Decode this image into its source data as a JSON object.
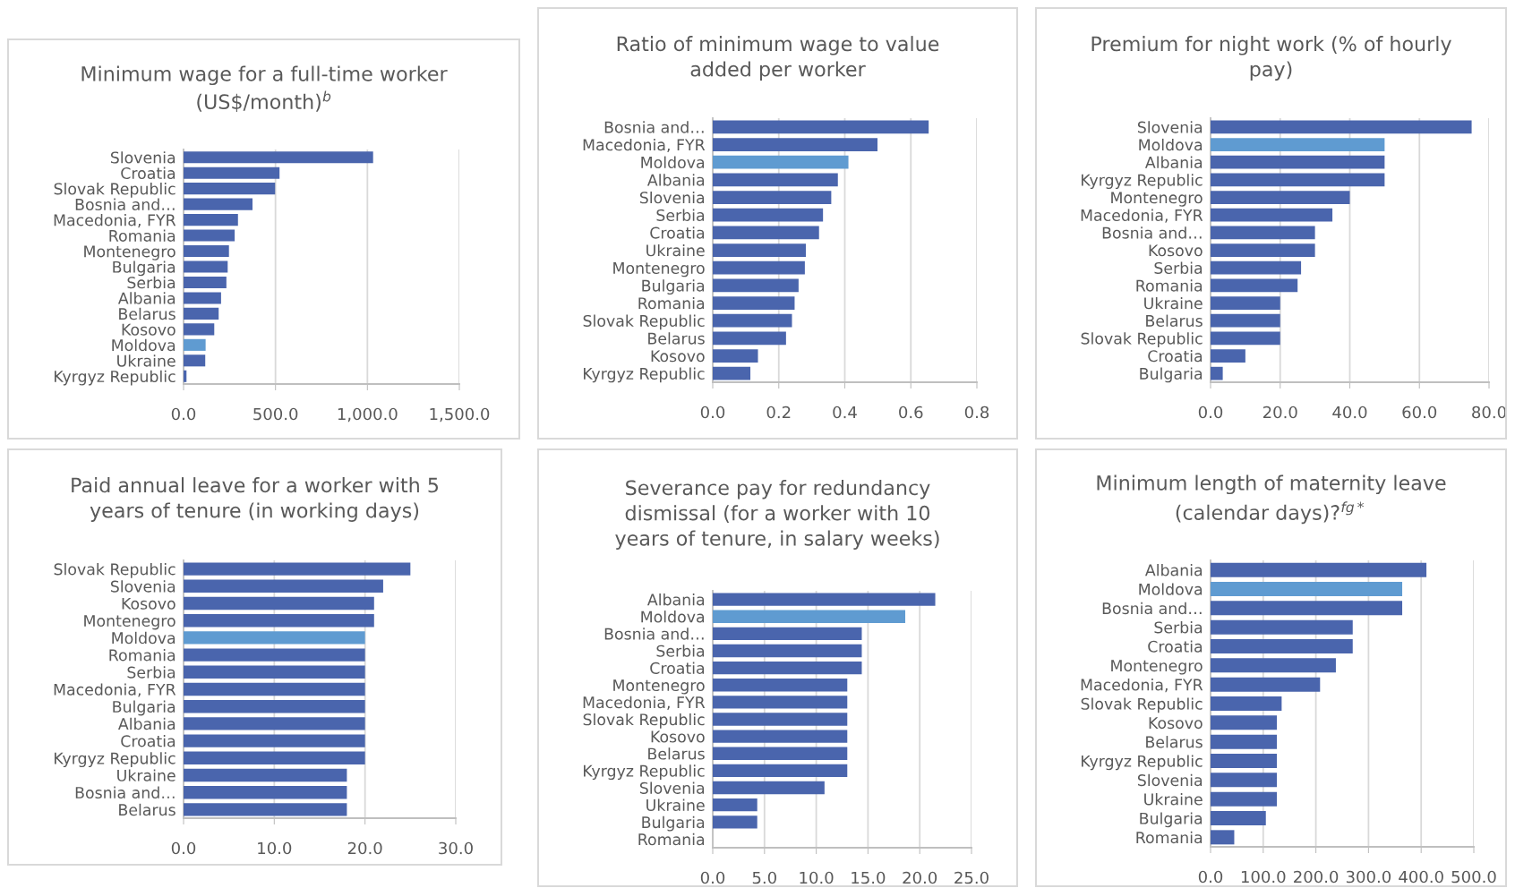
{
  "chart_data": [
    {
      "type": "bar",
      "orientation": "horizontal",
      "grid": "x",
      "title": "Minimum wage for a full-time worker (US$/month)$^{b}$",
      "categories": [
        "Slovenia",
        "Croatia",
        "Slovak Republic",
        "Bosnia and…",
        "Macedonia, FYR",
        "Romania",
        "Montenegro",
        "Bulgaria",
        "Serbia",
        "Albania",
        "Belarus",
        "Kosovo",
        "Moldova",
        "Ukraine",
        "Kyrgyz Republic"
      ],
      "values": [
        1031,
        522,
        498,
        375,
        296,
        278,
        247,
        240,
        233,
        204,
        191,
        167,
        120,
        118,
        16
      ],
      "colors": [
        "#4a65ad",
        "#4a65ad",
        "#4a65ad",
        "#4a65ad",
        "#4a65ad",
        "#4a65ad",
        "#4a65ad",
        "#4a65ad",
        "#4a65ad",
        "#4a65ad",
        "#4a65ad",
        "#4a65ad",
        "#5f9bd1",
        "#4a65ad",
        "#4a65ad"
      ],
      "xlim": [
        0,
        1500
      ],
      "xticks": [
        {
          "value": 0,
          "label": "0.0"
        },
        {
          "value": 500,
          "label": "500.0"
        },
        {
          "value": 1000,
          "label": "1,000.0"
        },
        {
          "value": 1500,
          "label": "1,500.0"
        }
      ]
    },
    {
      "type": "bar",
      "orientation": "horizontal",
      "grid": "x",
      "title": "Ratio of minimum wage to value added per worker",
      "categories": [
        "Bosnia and…",
        "Macedonia, FYR",
        "Moldova",
        "Albania",
        "Slovenia",
        "Serbia",
        "Croatia",
        "Ukraine",
        "Montenegro",
        "Bulgaria",
        "Romania",
        "Slovak Republic",
        "Belarus",
        "Kosovo",
        "Kyrgyz Republic"
      ],
      "values": [
        0.654,
        0.499,
        0.411,
        0.379,
        0.359,
        0.334,
        0.322,
        0.282,
        0.279,
        0.26,
        0.248,
        0.24,
        0.222,
        0.137,
        0.114
      ],
      "colors": [
        "#4a65ad",
        "#4a65ad",
        "#5f9bd1",
        "#4a65ad",
        "#4a65ad",
        "#4a65ad",
        "#4a65ad",
        "#4a65ad",
        "#4a65ad",
        "#4a65ad",
        "#4a65ad",
        "#4a65ad",
        "#4a65ad",
        "#4a65ad",
        "#4a65ad"
      ],
      "xlim": [
        0,
        0.8
      ],
      "xticks": [
        {
          "value": 0,
          "label": "0.0"
        },
        {
          "value": 0.2,
          "label": "0.2"
        },
        {
          "value": 0.4,
          "label": "0.4"
        },
        {
          "value": 0.6,
          "label": "0.6"
        },
        {
          "value": 0.8,
          "label": "0.8"
        }
      ]
    },
    {
      "type": "bar",
      "orientation": "horizontal",
      "grid": "x",
      "title": "Premium for night work (% of hourly pay)",
      "categories": [
        "Slovenia",
        "Moldova",
        "Albania",
        "Kyrgyz Republic",
        "Montenegro",
        "Macedonia, FYR",
        "Bosnia and…",
        "Kosovo",
        "Serbia",
        "Romania",
        "Ukraine",
        "Belarus",
        "Slovak Republic",
        "Croatia",
        "Bulgaria"
      ],
      "values": [
        75,
        50,
        50,
        50,
        40,
        35,
        30,
        30,
        26,
        25,
        20,
        20,
        20,
        10,
        3.5
      ],
      "colors": [
        "#4a65ad",
        "#5f9bd1",
        "#4a65ad",
        "#4a65ad",
        "#4a65ad",
        "#4a65ad",
        "#4a65ad",
        "#4a65ad",
        "#4a65ad",
        "#4a65ad",
        "#4a65ad",
        "#4a65ad",
        "#4a65ad",
        "#4a65ad",
        "#4a65ad"
      ],
      "xlim": [
        0,
        80
      ],
      "xticks": [
        {
          "value": 0,
          "label": "0.0"
        },
        {
          "value": 20,
          "label": "20.0"
        },
        {
          "value": 40,
          "label": "40.0"
        },
        {
          "value": 60,
          "label": "60.0"
        },
        {
          "value": 80,
          "label": "80.0"
        }
      ]
    },
    {
      "type": "bar",
      "orientation": "horizontal",
      "grid": "x",
      "title": "Paid annual leave for a worker with 5 years of tenure (in working days)",
      "categories": [
        "Slovak Republic",
        "Slovenia",
        "Kosovo",
        "Montenegro",
        "Moldova",
        "Romania",
        "Serbia",
        "Macedonia, FYR",
        "Bulgaria",
        "Albania",
        "Croatia",
        "Kyrgyz Republic",
        "Ukraine",
        "Bosnia and…",
        "Belarus"
      ],
      "values": [
        25,
        22,
        21,
        21,
        20,
        20,
        20,
        20,
        20,
        20,
        20,
        20,
        18,
        18,
        18
      ],
      "colors": [
        "#4a65ad",
        "#4a65ad",
        "#4a65ad",
        "#4a65ad",
        "#5f9bd1",
        "#4a65ad",
        "#4a65ad",
        "#4a65ad",
        "#4a65ad",
        "#4a65ad",
        "#4a65ad",
        "#4a65ad",
        "#4a65ad",
        "#4a65ad",
        "#4a65ad"
      ],
      "xlim": [
        0,
        30
      ],
      "xticks": [
        {
          "value": 0,
          "label": "0.0"
        },
        {
          "value": 10,
          "label": "10.0"
        },
        {
          "value": 20,
          "label": "20.0"
        },
        {
          "value": 30,
          "label": "30.0"
        }
      ]
    },
    {
      "type": "bar",
      "orientation": "horizontal",
      "grid": "x",
      "title": "Severance pay for redundancy dismissal (for a worker with 10 years of tenure, in salary weeks)",
      "categories": [
        "Albania",
        "Moldova",
        "Bosnia and…",
        "Serbia",
        "Croatia",
        "Montenegro",
        "Macedonia, FYR",
        "Slovak Republic",
        "Kosovo",
        "Belarus",
        "Kyrgyz Republic",
        "Slovenia",
        "Ukraine",
        "Bulgaria",
        "Romania"
      ],
      "values": [
        21.5,
        18.6,
        14.4,
        14.4,
        14.4,
        13,
        13,
        13,
        13,
        13,
        13,
        10.8,
        4.3,
        4.3,
        0
      ],
      "colors": [
        "#4a65ad",
        "#5f9bd1",
        "#4a65ad",
        "#4a65ad",
        "#4a65ad",
        "#4a65ad",
        "#4a65ad",
        "#4a65ad",
        "#4a65ad",
        "#4a65ad",
        "#4a65ad",
        "#4a65ad",
        "#4a65ad",
        "#4a65ad",
        "#4a65ad"
      ],
      "xlim": [
        0,
        25
      ],
      "xticks": [
        {
          "value": 0,
          "label": "0.0"
        },
        {
          "value": 5,
          "label": "5.0"
        },
        {
          "value": 10,
          "label": "10.0"
        },
        {
          "value": 15,
          "label": "15.0"
        },
        {
          "value": 20,
          "label": "20.0"
        },
        {
          "value": 25,
          "label": "25.0"
        }
      ]
    },
    {
      "type": "bar",
      "orientation": "horizontal",
      "grid": "x",
      "title": "Minimum length of maternity leave (calendar days)?$^{fg*}$",
      "categories": [
        "Albania",
        "Moldova",
        "Bosnia and…",
        "Serbia",
        "Croatia",
        "Montenegro",
        "Macedonia, FYR",
        "Slovak Republic",
        "Kosovo",
        "Belarus",
        "Kyrgyz Republic",
        "Slovenia",
        "Ukraine",
        "Bulgaria",
        "Romania"
      ],
      "values": [
        410,
        364,
        364,
        270,
        270,
        238,
        208,
        135,
        126,
        126,
        126,
        126,
        126,
        105,
        45
      ],
      "colors": [
        "#4a65ad",
        "#5f9bd1",
        "#4a65ad",
        "#4a65ad",
        "#4a65ad",
        "#4a65ad",
        "#4a65ad",
        "#4a65ad",
        "#4a65ad",
        "#4a65ad",
        "#4a65ad",
        "#4a65ad",
        "#4a65ad",
        "#4a65ad",
        "#4a65ad"
      ],
      "xlim": [
        0,
        500
      ],
      "xticks": [
        {
          "value": 0,
          "label": "0.0"
        },
        {
          "value": 100,
          "label": "100.0"
        },
        {
          "value": 200,
          "label": "200.0"
        },
        {
          "value": 300,
          "label": "300.0"
        },
        {
          "value": 400,
          "label": "400.0"
        },
        {
          "value": 500,
          "label": "500.0"
        }
      ]
    }
  ]
}
